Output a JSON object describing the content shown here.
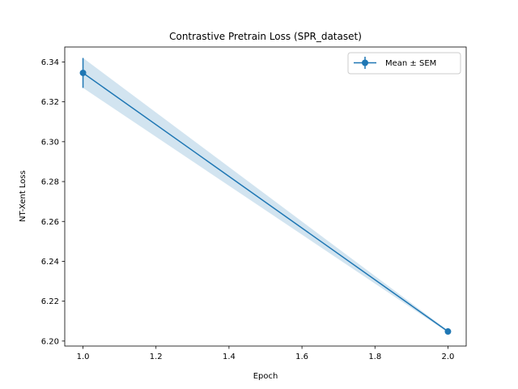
{
  "chart_data": {
    "type": "line",
    "title": "Contrastive Pretrain Loss (SPR_dataset)",
    "xlabel": "Epoch",
    "ylabel": "NT-Xent Loss",
    "xlim": [
      0.95,
      2.05
    ],
    "ylim": [
      6.1975,
      6.3475
    ],
    "xticks": [
      1.0,
      1.2,
      1.4,
      1.6,
      1.8,
      2.0
    ],
    "yticks": [
      6.2,
      6.22,
      6.24,
      6.26,
      6.28,
      6.3,
      6.32,
      6.34
    ],
    "series": [
      {
        "name": "Mean ± SEM",
        "x": [
          1.0,
          2.0
        ],
        "y": [
          6.3345,
          6.2048
        ],
        "sem": [
          0.0075,
          0.0005
        ],
        "color": "#1f77b4",
        "band_color": "#1f77b4",
        "marker": "circle",
        "error_bars": true,
        "shaded_band": true
      }
    ],
    "legend_placement": "upper right",
    "grid": false
  }
}
